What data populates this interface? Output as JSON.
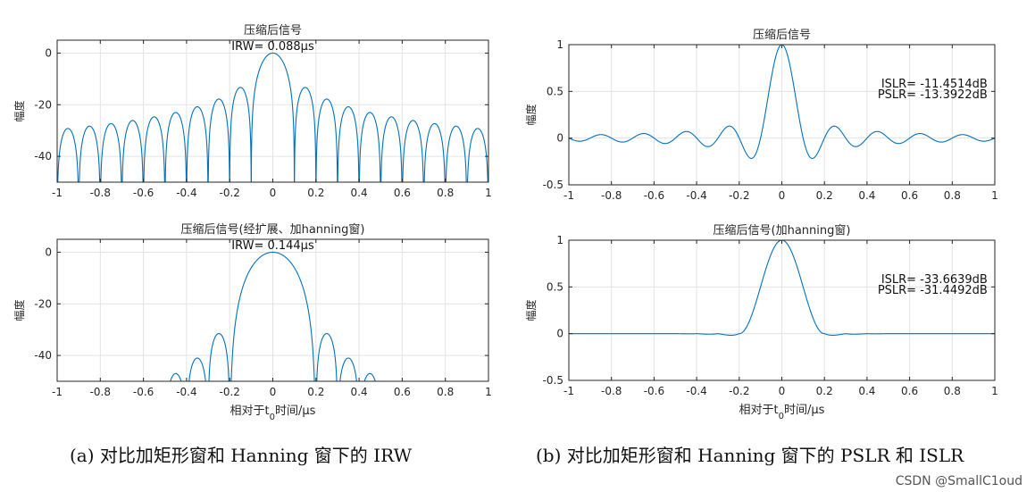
{
  "captions": {
    "a": "(a) 对比加矩形窗和 Hanning 窗下的 IRW",
    "b": "(b) 对比加矩形窗和 Hanning 窗下的 PSLR 和 ISLR"
  },
  "watermark": "CSDN @SmallC1oud",
  "chart_data": [
    {
      "id": "a1",
      "type": "line",
      "title": "压缩后信号",
      "annotation": "IRW= 0.088μs",
      "ylabel": "幅度",
      "xlabel": "",
      "xlim": [
        -1,
        1
      ],
      "ylim": [
        -50,
        5
      ],
      "xticks": [
        -1,
        -0.8,
        -0.6,
        -0.4,
        -0.2,
        0,
        0.2,
        0.4,
        0.6,
        0.8,
        1
      ],
      "xtick_labels": [
        "-1",
        "-0.8",
        "-0.6",
        "-0.4",
        "-0.2",
        "0",
        "0.2",
        "0.4",
        "0.6",
        "0.8",
        "1"
      ],
      "yticks": [
        0,
        -20,
        -40
      ],
      "ytick_labels": [
        "0",
        "-20",
        "-40"
      ],
      "grid": true,
      "series": [
        {
          "color": "#0072BD",
          "function": "sinc_db",
          "null_spacing": 0.1,
          "lobe_peaks_db": [
            -13.3,
            -17.8,
            -20.8,
            -23.0,
            -24.7,
            -26.1,
            -27.3,
            -28.3,
            -29.2,
            -30.0
          ]
        }
      ]
    },
    {
      "id": "a2",
      "type": "line",
      "title": "压缩后信号(经扩展、加hanning窗)",
      "annotation": "IRW= 0.144μs",
      "ylabel": "幅度",
      "xlabel": "相对于t0时间/μs",
      "xlim": [
        -1,
        1
      ],
      "ylim": [
        -50,
        5
      ],
      "xticks": [
        -1,
        -0.8,
        -0.6,
        -0.4,
        -0.2,
        0,
        0.2,
        0.4,
        0.6,
        0.8,
        1
      ],
      "xtick_labels": [
        "-1",
        "-0.8",
        "-0.6",
        "-0.4",
        "-0.2",
        "0",
        "0.2",
        "0.4",
        "0.6",
        "0.8",
        "1"
      ],
      "yticks": [
        0,
        -20,
        -40
      ],
      "ytick_labels": [
        "0",
        "-20",
        "-40"
      ],
      "grid": true,
      "series": [
        {
          "color": "#0072BD",
          "function": "hanning_db",
          "null_spacing": 0.1,
          "first_null": 0.2,
          "lobe_peaks_db": [
            -31.5,
            -41.0,
            -47.0
          ]
        }
      ]
    },
    {
      "id": "b1",
      "type": "line",
      "title": "压缩后信号",
      "annotation_lines": [
        "ISLR= -11.4514dB",
        "PSLR= -13.3922dB"
      ],
      "ylabel": "幅度",
      "xlabel": "",
      "xlim": [
        -1,
        1
      ],
      "ylim": [
        -0.5,
        1
      ],
      "xticks": [
        -1,
        -0.8,
        -0.6,
        -0.4,
        -0.2,
        0,
        0.2,
        0.4,
        0.6,
        0.8,
        1
      ],
      "xtick_labels": [
        "-1",
        "-0.8",
        "-0.6",
        "-0.4",
        "-0.2",
        "0",
        "0.2",
        "0.4",
        "0.6",
        "0.8",
        "1"
      ],
      "yticks": [
        1,
        0.5,
        0,
        -0.5
      ],
      "ytick_labels": [
        "1",
        "0.5",
        "0",
        "-0.5"
      ],
      "grid": true,
      "series": [
        {
          "color": "#0072BD",
          "function": "sinc",
          "null_spacing": 0.1
        }
      ]
    },
    {
      "id": "b2",
      "type": "line",
      "title": "压缩后信号(加hanning窗)",
      "annotation_lines": [
        "ISLR= -33.6639dB",
        "PSLR= -31.4492dB"
      ],
      "ylabel": "幅度",
      "xlabel": "相对于t0时间/μs",
      "xlim": [
        -1,
        1
      ],
      "ylim": [
        -0.5,
        1
      ],
      "xticks": [
        -1,
        -0.8,
        -0.6,
        -0.4,
        -0.2,
        0,
        0.2,
        0.4,
        0.6,
        0.8,
        1
      ],
      "xtick_labels": [
        "-1",
        "-0.8",
        "-0.6",
        "-0.4",
        "-0.2",
        "0",
        "0.2",
        "0.4",
        "0.6",
        "0.8",
        "1"
      ],
      "yticks": [
        1,
        0.5,
        0,
        -0.5
      ],
      "ytick_labels": [
        "1",
        "0.5",
        "0",
        "-0.5"
      ],
      "grid": true,
      "series": [
        {
          "color": "#0072BD",
          "function": "hanning",
          "null_spacing": 0.1,
          "first_null": 0.2
        }
      ]
    }
  ]
}
